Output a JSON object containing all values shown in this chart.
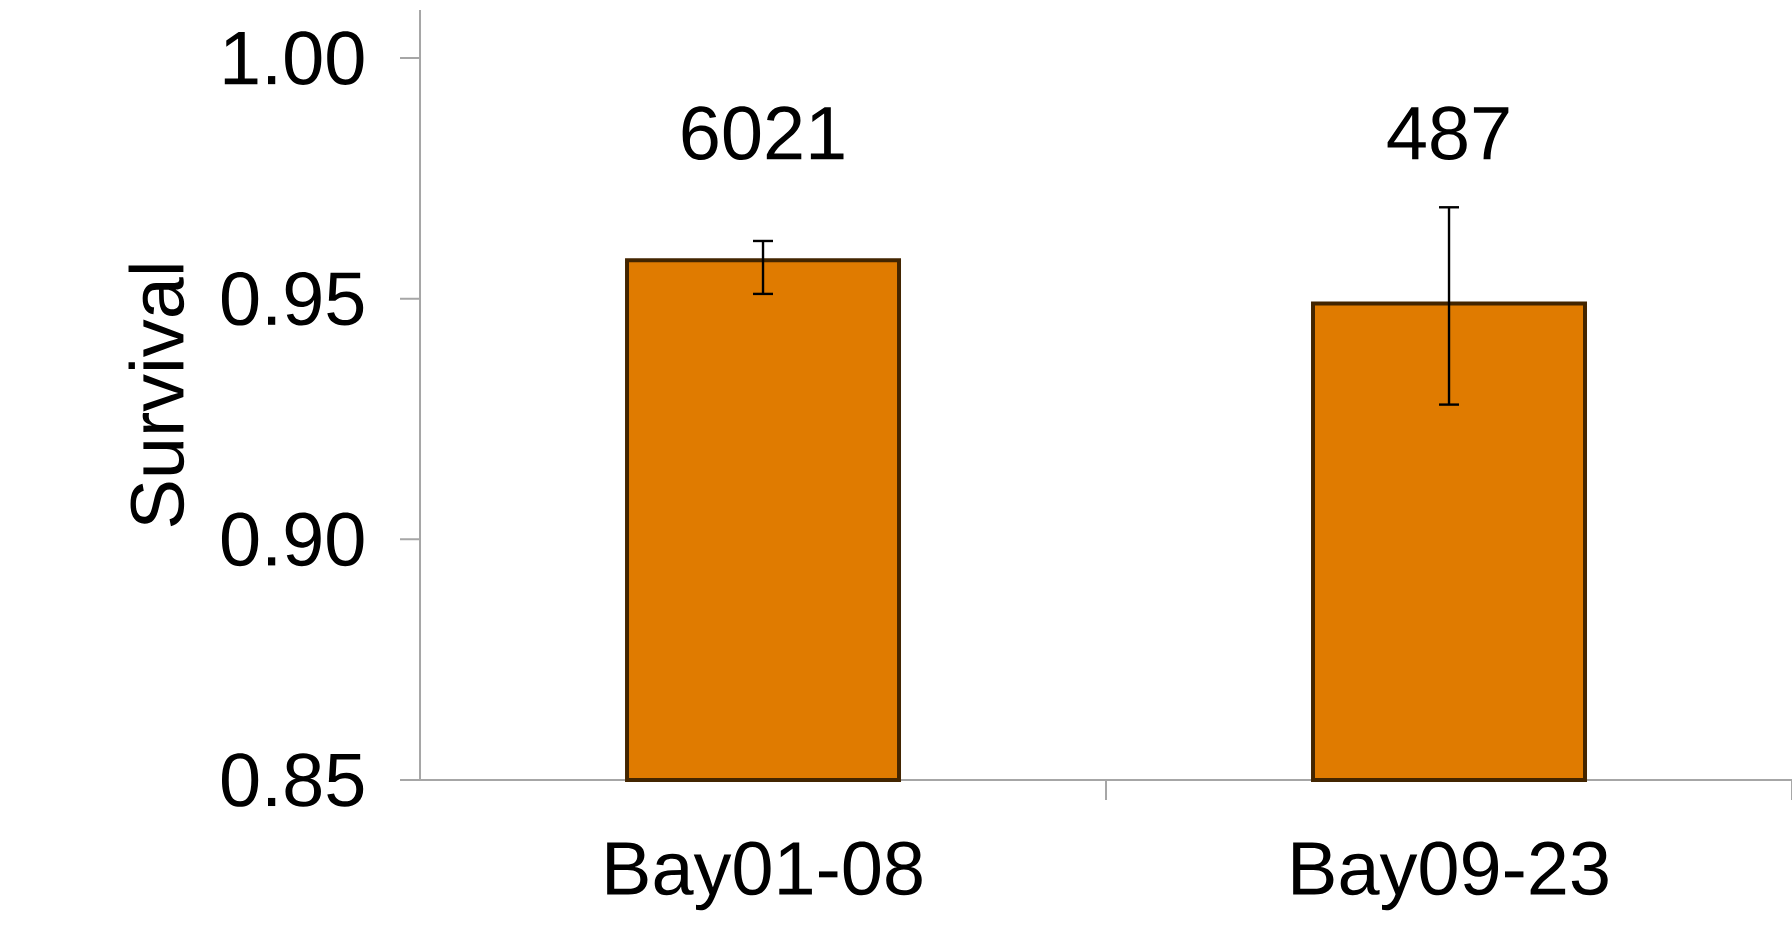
{
  "chart_data": {
    "type": "bar",
    "ylabel": "Survival",
    "categories": [
      "Bay01-08",
      "Bay09-23"
    ],
    "values": [
      0.958,
      0.949
    ],
    "errors": [
      [
        0.951,
        0.962
      ],
      [
        0.928,
        0.969
      ]
    ],
    "color": "#e07b00",
    "ylim": [
      0.85,
      1.01
    ],
    "yticks": [
      {
        "value": 0.85,
        "label": "0.85"
      },
      {
        "value": 0.9,
        "label": "0.90"
      },
      {
        "value": 0.95,
        "label": "0.95"
      },
      {
        "value": 1.0,
        "label": "1.00"
      }
    ],
    "annotations": [
      "6021",
      "487"
    ],
    "grid": false
  }
}
